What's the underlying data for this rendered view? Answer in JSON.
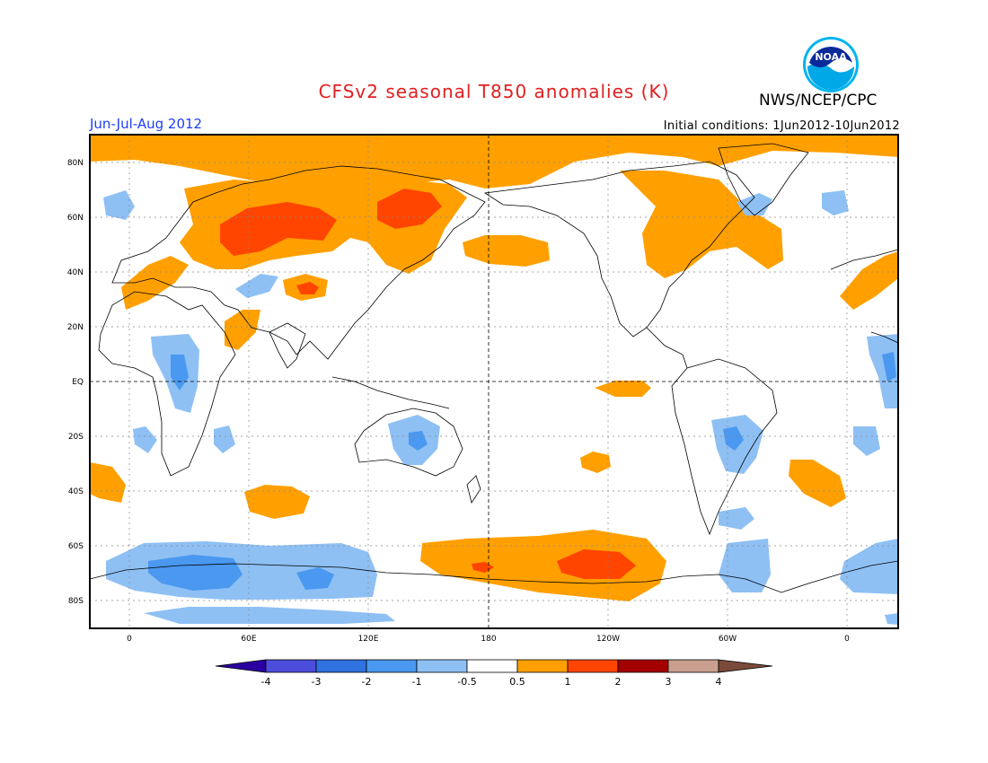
{
  "header": {
    "title": "CFSv2 seasonal T850 anomalies (K)",
    "organization": "NWS/NCEP/CPC",
    "period": "Jun-Jul-Aug 2012",
    "initial_conditions": "Initial conditions: 1Jun2012-10Jun2012",
    "logo_text": "NOAA"
  },
  "axes": {
    "lat_labels": [
      "80N",
      "60N",
      "40N",
      "20N",
      "EQ",
      "20S",
      "40S",
      "60S",
      "80S"
    ],
    "lon_labels": [
      "0",
      "60E",
      "120E",
      "180",
      "120W",
      "60W",
      "0"
    ]
  },
  "colorbar": {
    "tick_labels": [
      "-4",
      "-3",
      "-2",
      "-1",
      "-0.5",
      "0.5",
      "1",
      "2",
      "3",
      "4"
    ],
    "colors": [
      "#2a00a0",
      "#4d4ddb",
      "#2f72e0",
      "#4a98f0",
      "#8ec0f4",
      "#ffffff",
      "#ffa000",
      "#ff4500",
      "#a50000",
      "#c9a090",
      "#7a4a3a"
    ]
  },
  "legend_colors": {
    "warm_1": "#ffa000",
    "warm_2": "#ff4500",
    "cool_1": "#8ec0f4",
    "cool_2": "#4a98f0"
  }
}
